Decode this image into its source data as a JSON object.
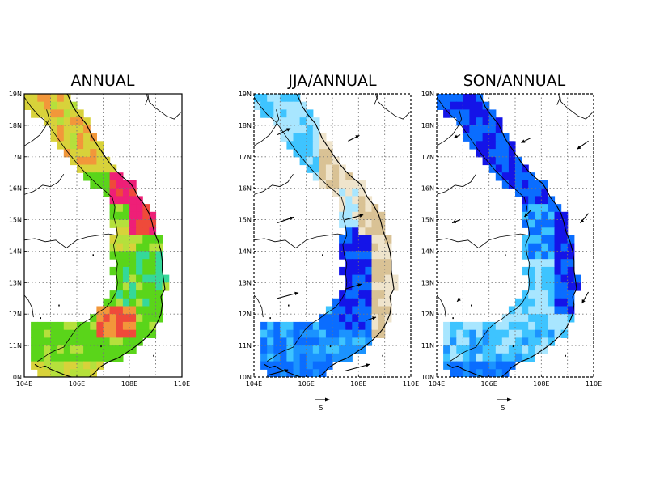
{
  "panels": [
    {
      "id": "annual",
      "title": "ANNUAL",
      "frame_style": "solid",
      "has_wind_vectors": false,
      "has_reference_vector": false
    },
    {
      "id": "jja",
      "title": "JJA/ANNUAL",
      "frame_style": "dashed",
      "has_wind_vectors": true,
      "has_reference_vector": true,
      "reference_vector_label": "5"
    },
    {
      "id": "son",
      "title": "SON/ANNUAL",
      "frame_style": "dashed",
      "has_wind_vectors": true,
      "has_reference_vector": true,
      "reference_vector_label": "5"
    }
  ],
  "axes": {
    "lon_range": [
      104,
      110
    ],
    "lat_range": [
      10,
      19
    ],
    "x_ticks": [
      "104E",
      "106E",
      "108E",
      "110E"
    ],
    "y_ticks": [
      "10N",
      "11N",
      "12N",
      "13N",
      "14N",
      "15N",
      "16N",
      "17N",
      "18N",
      "19N"
    ],
    "grid": "dotted"
  },
  "colors": {
    "annual_green": "#5ad51a",
    "annual_yellowgreen": "#b5e03c",
    "annual_yellow": "#d8d23a",
    "annual_orange": "#f2973a",
    "annual_red": "#ef4a3a",
    "annual_magenta": "#ee1f77",
    "annual_teal": "#35d89a",
    "ratio_deep_blue": "#1414e8",
    "ratio_blue": "#0a6dff",
    "ratio_medium_blue": "#1b93ff",
    "ratio_light_blue": "#3ec4ff",
    "ratio_pale_blue": "#a8e6ff",
    "ratio_tan": "#d9c295",
    "ratio_beige": "#efe4cc"
  }
}
